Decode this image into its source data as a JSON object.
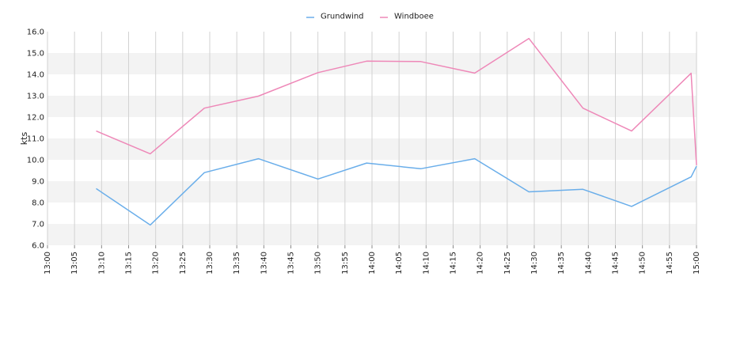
{
  "chart_data": {
    "type": "line",
    "ylabel": "kts",
    "ylim": [
      6.0,
      16.0
    ],
    "y_ticks": [
      "6.0",
      "7.0",
      "8.0",
      "9.0",
      "10.0",
      "11.0",
      "12.0",
      "13.0",
      "14.0",
      "15.0",
      "16.0"
    ],
    "x_range": [
      "13:00",
      "15:00"
    ],
    "x_ticks": [
      "13:00",
      "13:05",
      "13:10",
      "13:15",
      "13:20",
      "13:25",
      "13:30",
      "13:35",
      "13:40",
      "13:45",
      "13:50",
      "13:55",
      "14:00",
      "14:05",
      "14:10",
      "14:15",
      "14:20",
      "14:25",
      "14:30",
      "14:35",
      "14:40",
      "14:45",
      "14:50",
      "14:55",
      "15:00"
    ],
    "grid": true,
    "legend_position": "top-center",
    "series": [
      {
        "name": "Grundwind",
        "color": "#6aaeea",
        "x": [
          "13:09",
          "13:19",
          "13:29",
          "13:39",
          "13:50",
          "13:59",
          "14:09",
          "14:19",
          "14:29",
          "14:39",
          "14:48",
          "14:59",
          "15:00"
        ],
        "y": [
          8.65,
          6.95,
          9.4,
          10.05,
          9.1,
          9.85,
          9.58,
          10.05,
          8.5,
          8.62,
          7.82,
          9.2,
          9.7
        ]
      },
      {
        "name": "Windboee",
        "color": "#ee88b8",
        "x": [
          "13:09",
          "13:19",
          "13:29",
          "13:39",
          "13:50",
          "13:59",
          "14:09",
          "14:19",
          "14:29",
          "14:39",
          "14:48",
          "14:59",
          "15:00"
        ],
        "y": [
          11.35,
          10.28,
          12.42,
          12.98,
          14.08,
          14.62,
          14.6,
          14.06,
          15.68,
          12.42,
          11.35,
          14.05,
          9.75
        ]
      }
    ]
  }
}
